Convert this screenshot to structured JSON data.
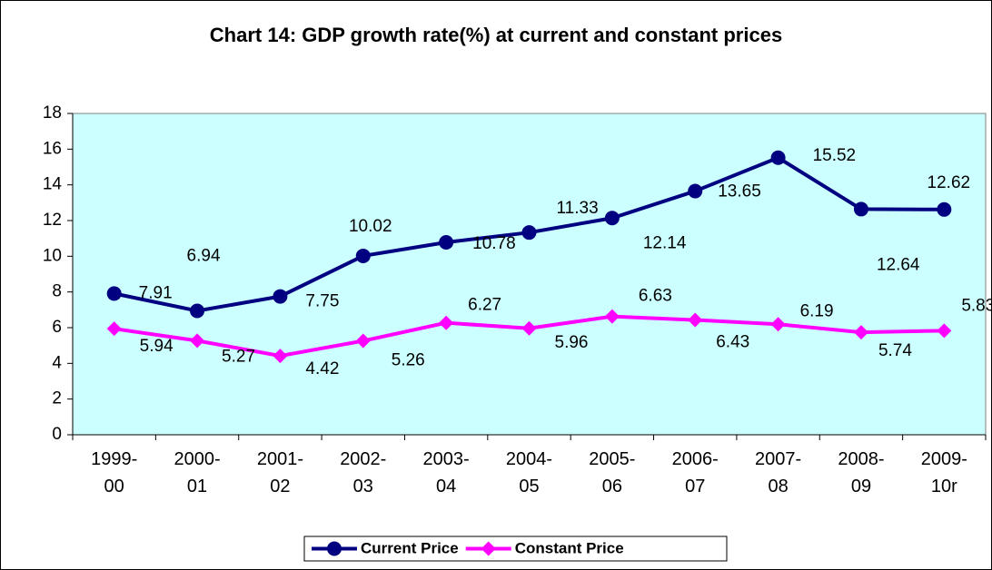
{
  "chart_data": {
    "type": "line",
    "title": "Chart 14: GDP growth rate(%) at current and constant prices",
    "categories": [
      "1999-00",
      "2000-01",
      "2001-02",
      "2002-03",
      "2003-04",
      "2004-05",
      "2005-06",
      "2006-07",
      "2007-08",
      "2008-09",
      "2009-10r"
    ],
    "series": [
      {
        "name": "Current Price",
        "color": "#000080",
        "marker": "circle",
        "values": [
          7.91,
          6.94,
          7.75,
          10.02,
          10.78,
          11.33,
          12.14,
          13.65,
          15.52,
          12.64,
          12.62
        ]
      },
      {
        "name": "Constant Price",
        "color": "#ff00ff",
        "marker": "diamond",
        "values": [
          5.94,
          5.27,
          4.42,
          5.26,
          6.27,
          5.96,
          6.63,
          6.43,
          6.19,
          5.74,
          5.83
        ]
      }
    ],
    "ylim": [
      0,
      18
    ],
    "yticks": [
      0,
      2,
      4,
      6,
      8,
      10,
      12,
      14,
      16,
      18
    ],
    "grid": false,
    "legend": "bottom",
    "plot_background": "#ccffff"
  }
}
